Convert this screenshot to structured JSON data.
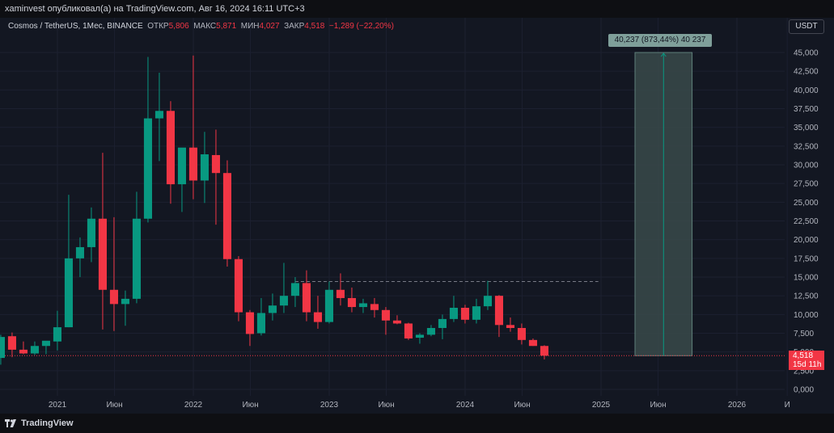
{
  "header": {
    "publish_text": "xaminvest опубликовал(а) на TradingView.com, Авг 16, 2024 16:11 UTC+3"
  },
  "legend": {
    "symbol": "Cosmos / TetherUS, 1Мес, BINANCE",
    "open_label": "ОТКР",
    "open_value": "5,806",
    "high_label": "МАКС",
    "high_value": "5,871",
    "low_label": "МИН",
    "low_value": "4,027",
    "close_label": "ЗАКР",
    "close_value": "4,518",
    "change_value": "−1,289 (−22,20%)"
  },
  "currency_button": "USDT",
  "measure_label": "40,237 (873,44%) 40 237",
  "last_price_tag": {
    "price": "4,518",
    "countdown": "15d 11h"
  },
  "footer": {
    "brand": "TradingView"
  },
  "colors": {
    "up": "#089981",
    "down": "#f23645",
    "background": "#131722",
    "measure_fill": "#3a4a4a"
  },
  "chart_data": {
    "type": "candlestick",
    "timeframe": "1M",
    "y_ticks": [
      "45,000",
      "42,500",
      "40,000",
      "37,500",
      "35,000",
      "32,500",
      "30,000",
      "27,500",
      "25,000",
      "22,500",
      "20,000",
      "17,500",
      "15,000",
      "12,500",
      "10,000",
      "7,500",
      "5,000",
      "2,500",
      "0,000"
    ],
    "x_ticks": [
      {
        "label": "2021",
        "t": 2021.0
      },
      {
        "label": "Июн",
        "t": 2021.42
      },
      {
        "label": "2022",
        "t": 2022.0
      },
      {
        "label": "Июн",
        "t": 2022.42
      },
      {
        "label": "2023",
        "t": 2023.0
      },
      {
        "label": "Июн",
        "t": 2023.42
      },
      {
        "label": "2024",
        "t": 2024.0
      },
      {
        "label": "Июн",
        "t": 2024.42
      },
      {
        "label": "2025",
        "t": 2025.0
      },
      {
        "label": "Июн",
        "t": 2025.42
      },
      {
        "label": "2026",
        "t": 2026.0
      },
      {
        "label": "И",
        "t": 2026.37
      }
    ],
    "ylim": [
      0,
      47000
    ],
    "candles": [
      {
        "o": 4.2,
        "h": 7.3,
        "l": 3.3,
        "c": 7.0
      },
      {
        "o": 7.1,
        "h": 7.6,
        "l": 4.3,
        "c": 5.3
      },
      {
        "o": 5.3,
        "h": 6.4,
        "l": 4.7,
        "c": 4.8
      },
      {
        "o": 4.8,
        "h": 6.4,
        "l": 4.6,
        "c": 5.8
      },
      {
        "o": 5.8,
        "h": 6.4,
        "l": 4.7,
        "c": 6.5
      },
      {
        "o": 6.4,
        "h": 10.5,
        "l": 5.2,
        "c": 8.3
      },
      {
        "o": 8.3,
        "h": 26.0,
        "l": 8.3,
        "c": 17.5
      },
      {
        "o": 17.5,
        "h": 20.3,
        "l": 15.0,
        "c": 19.0
      },
      {
        "o": 19.0,
        "h": 24.3,
        "l": 17.0,
        "c": 22.8
      },
      {
        "o": 22.8,
        "h": 31.6,
        "l": 8.0,
        "c": 13.3
      },
      {
        "o": 13.3,
        "h": 23.0,
        "l": 7.8,
        "c": 11.4
      },
      {
        "o": 11.4,
        "h": 13.2,
        "l": 8.5,
        "c": 12.1
      },
      {
        "o": 12.1,
        "h": 26.4,
        "l": 11.5,
        "c": 22.8
      },
      {
        "o": 22.8,
        "h": 44.4,
        "l": 22.3,
        "c": 36.2
      },
      {
        "o": 36.2,
        "h": 42.3,
        "l": 30.5,
        "c": 37.2
      },
      {
        "o": 37.2,
        "h": 38.5,
        "l": 24.8,
        "c": 27.4
      },
      {
        "o": 27.4,
        "h": 32.1,
        "l": 23.7,
        "c": 32.3
      },
      {
        "o": 32.3,
        "h": 44.6,
        "l": 25.4,
        "c": 27.9
      },
      {
        "o": 27.9,
        "h": 34.4,
        "l": 24.9,
        "c": 31.4
      },
      {
        "o": 31.3,
        "h": 34.7,
        "l": 22.0,
        "c": 28.9
      },
      {
        "o": 28.9,
        "h": 30.6,
        "l": 16.4,
        "c": 17.4
      },
      {
        "o": 17.4,
        "h": 17.8,
        "l": 9.1,
        "c": 10.3
      },
      {
        "o": 10.3,
        "h": 10.6,
        "l": 5.8,
        "c": 7.4
      },
      {
        "o": 7.5,
        "h": 12.2,
        "l": 7.2,
        "c": 10.2
      },
      {
        "o": 10.2,
        "h": 12.8,
        "l": 9.2,
        "c": 11.2
      },
      {
        "o": 11.2,
        "h": 16.9,
        "l": 10.2,
        "c": 12.5
      },
      {
        "o": 12.5,
        "h": 15.0,
        "l": 11.0,
        "c": 14.2
      },
      {
        "o": 14.2,
        "h": 15.9,
        "l": 9.1,
        "c": 10.3
      },
      {
        "o": 10.3,
        "h": 12.5,
        "l": 8.1,
        "c": 9.0
      },
      {
        "o": 9.0,
        "h": 14.4,
        "l": 8.8,
        "c": 13.3
      },
      {
        "o": 13.3,
        "h": 15.5,
        "l": 11.2,
        "c": 12.2
      },
      {
        "o": 12.2,
        "h": 13.6,
        "l": 10.3,
        "c": 11.0
      },
      {
        "o": 11.0,
        "h": 12.1,
        "l": 10.2,
        "c": 11.5
      },
      {
        "o": 11.4,
        "h": 12.2,
        "l": 9.6,
        "c": 10.6
      },
      {
        "o": 10.6,
        "h": 11.0,
        "l": 7.3,
        "c": 9.2
      },
      {
        "o": 9.2,
        "h": 9.9,
        "l": 8.7,
        "c": 8.8
      },
      {
        "o": 8.8,
        "h": 8.9,
        "l": 6.6,
        "c": 6.8
      },
      {
        "o": 6.9,
        "h": 7.5,
        "l": 6.1,
        "c": 7.3
      },
      {
        "o": 7.3,
        "h": 8.6,
        "l": 7.1,
        "c": 8.2
      },
      {
        "o": 8.2,
        "h": 10.0,
        "l": 6.7,
        "c": 9.4
      },
      {
        "o": 9.4,
        "h": 12.5,
        "l": 9.0,
        "c": 10.9
      },
      {
        "o": 10.9,
        "h": 11.3,
        "l": 8.8,
        "c": 9.3
      },
      {
        "o": 9.3,
        "h": 12.1,
        "l": 8.8,
        "c": 11.1
      },
      {
        "o": 11.1,
        "h": 14.5,
        "l": 10.6,
        "c": 12.5
      },
      {
        "o": 12.5,
        "h": 12.6,
        "l": 7.0,
        "c": 8.6
      },
      {
        "o": 8.6,
        "h": 9.6,
        "l": 7.7,
        "c": 8.2
      },
      {
        "o": 8.2,
        "h": 8.8,
        "l": 6.0,
        "c": 6.6
      },
      {
        "o": 6.6,
        "h": 6.8,
        "l": 5.8,
        "c": 5.8
      },
      {
        "o": 5.8,
        "h": 5.9,
        "l": 4.0,
        "c": 4.5
      }
    ],
    "resistance_line": {
      "y": 14.4,
      "from_candle": 26,
      "to_t": 2024.98
    },
    "measure": {
      "from_t": 2025.25,
      "to_t": 2025.67,
      "from_y": 4.5,
      "to_y": 45.0
    }
  }
}
